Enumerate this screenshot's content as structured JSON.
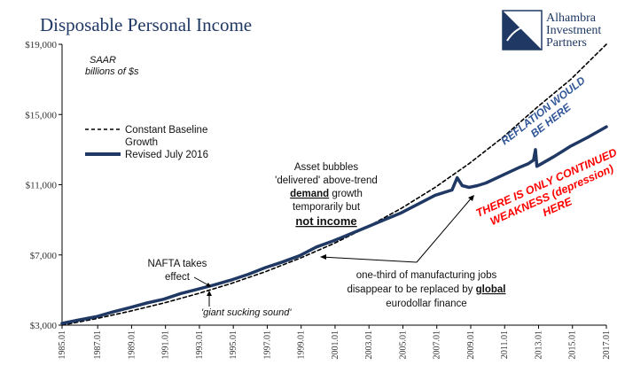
{
  "header": {
    "title": "Disposable Personal Income"
  },
  "logo": {
    "line1": "Alhambra",
    "line2": "Investment",
    "line3": "Partners"
  },
  "chart_data": {
    "type": "line",
    "title": "Disposable Personal Income",
    "unit_note_line1": "SAAR",
    "unit_note_line2": "billions of $s",
    "ylim": [
      3000,
      19000
    ],
    "xlim": [
      1985.0,
      2017.1
    ],
    "y_ticks": [
      3000,
      7000,
      11000,
      15000,
      19000
    ],
    "y_tick_labels": [
      "$3,000",
      "$7,000",
      "$11,000",
      "$15,000",
      "$19,000"
    ],
    "x_ticks": [
      1985.0,
      1987.1,
      1989.1,
      1991.1,
      1993.1,
      1995.1,
      1997.1,
      1999.1,
      2001.1,
      2003.1,
      2005.1,
      2007.1,
      2009.1,
      2011.1,
      2013.1,
      2015.1,
      2017.1
    ],
    "x_tick_labels": [
      "1985.01",
      "1987.01",
      "1989.01",
      "1991.01",
      "1993.01",
      "1995.01",
      "1997.01",
      "1999.01",
      "2001.01",
      "2003.01",
      "2005.01",
      "2007.01",
      "2009.01",
      "2011.01",
      "2013.01",
      "2015.01",
      "2017.01"
    ],
    "grid": false,
    "legend_position": "upper-left",
    "colors": {
      "series_revised": "#1f3864",
      "blue_text": "#2f5597",
      "red_text": "#ff0000"
    },
    "series": [
      {
        "name": "Constant Baseline Growth",
        "style": "dashed",
        "x": [
          1985.0,
          1987.0,
          1989.0,
          1991.0,
          1993.0,
          1995.0,
          1997.0,
          1999.0,
          2001.0,
          2003.0,
          2005.0,
          2007.0,
          2009.0,
          2011.0,
          2013.0,
          2015.0,
          2017.1
        ],
        "y": [
          3000,
          3370,
          3790,
          4260,
          4790,
          5380,
          6050,
          6800,
          7640,
          8590,
          9650,
          10850,
          12200,
          13700,
          15400,
          17000,
          19000
        ]
      },
      {
        "name": "Revised July 2016",
        "style": "solid",
        "x": [
          1985.0,
          1986.0,
          1987.0,
          1988.0,
          1989.0,
          1990.0,
          1991.0,
          1992.0,
          1993.0,
          1994.0,
          1995.0,
          1996.0,
          1997.0,
          1998.0,
          1999.0,
          2000.0,
          2001.0,
          2002.0,
          2003.0,
          2004.0,
          2005.0,
          2006.0,
          2007.0,
          2008.0,
          2008.3,
          2008.6,
          2009.0,
          2009.5,
          2010.0,
          2011.0,
          2012.0,
          2012.5,
          2012.8,
          2012.92,
          2013.0,
          2013.1,
          2014.0,
          2015.0,
          2016.0,
          2017.1
        ],
        "y": [
          3100,
          3300,
          3480,
          3750,
          4000,
          4260,
          4480,
          4800,
          5050,
          5300,
          5580,
          5900,
          6280,
          6600,
          6950,
          7450,
          7800,
          8200,
          8600,
          9000,
          9400,
          9900,
          10400,
          10700,
          11400,
          10950,
          10850,
          10950,
          11100,
          11550,
          12000,
          12200,
          12400,
          13000,
          12050,
          12100,
          12600,
          13200,
          13700,
          14300
        ]
      }
    ],
    "legend": [
      {
        "label_line1": "Constant Baseline",
        "label_line2": "Growth"
      },
      {
        "label_line1": "Revised July 2016",
        "label_line2": ""
      }
    ],
    "annotations": {
      "asset_bubbles": {
        "line1": "Asset bubbles",
        "line2": "'delivered' above-trend",
        "line3_bold": "demand",
        "line3_rest": " growth",
        "line4": "temporarily but",
        "line5": "not income"
      },
      "nafta": {
        "line1": "NAFTA takes",
        "line2": "effect"
      },
      "giant": "'giant sucking sound'",
      "manufacturing": {
        "line1": "one-third of manufacturing jobs",
        "line2_pre": "disappear to be replaced by ",
        "line2_bold": "global",
        "line3": "eurodollar finance"
      },
      "reflation": {
        "line1": "REFLATION WOULD",
        "line2": "BE HERE"
      },
      "weakness": {
        "line1": "THERE IS ONLY CONTINUED",
        "line2": "WEAKNESS (depression)",
        "line3": "HERE"
      }
    }
  }
}
